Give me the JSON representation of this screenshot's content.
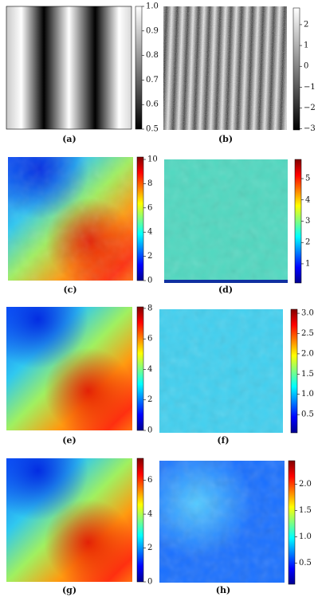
{
  "panels": [
    {
      "caption": "(a)",
      "colormap": "gray",
      "lim": [
        0.5,
        1.0
      ],
      "ticks": [
        0.5,
        0.6,
        0.7,
        0.8,
        0.9,
        {
          "value": 1.0,
          "label": "1.0"
        }
      ]
    },
    {
      "caption": "(b)",
      "colormap": "gray",
      "lim": [
        -3.05,
        2.8
      ],
      "ticks": [
        {
          "value": -3,
          "label": "−3"
        },
        {
          "value": -2,
          "label": "−2"
        },
        {
          "value": -1,
          "label": "−1"
        },
        0,
        1,
        2
      ]
    },
    {
      "caption": "(c)",
      "colormap": "jet",
      "lim": [
        0,
        10.2
      ],
      "ticks": [
        0,
        2,
        4,
        6,
        8,
        10
      ]
    },
    {
      "caption": "(d)",
      "colormap": "jet",
      "lim": [
        0.1,
        5.9
      ],
      "ticks": [
        1,
        2,
        3,
        4,
        5
      ]
    },
    {
      "caption": "(e)",
      "colormap": "jet",
      "lim": [
        0,
        8.1
      ],
      "ticks": [
        0,
        2,
        4,
        6,
        8
      ]
    },
    {
      "caption": "(f)",
      "colormap": "jet",
      "lim": [
        0.05,
        3.1
      ],
      "ticks": [
        0.5,
        {
          "value": 1.0,
          "label": "1.0"
        },
        1.5,
        {
          "value": 2.0,
          "label": "2.0"
        },
        2.5,
        {
          "value": 3.0,
          "label": "3.0"
        }
      ]
    },
    {
      "caption": "(g)",
      "colormap": "jet",
      "lim": [
        0,
        7.3
      ],
      "ticks": [
        0,
        2,
        4,
        6
      ]
    },
    {
      "caption": "(h)",
      "colormap": "jet",
      "lim": [
        0.1,
        2.45
      ],
      "ticks": [
        0.5,
        {
          "value": 1.0,
          "label": "1.0"
        },
        1.5,
        {
          "value": 2.0,
          "label": "2.0"
        }
      ]
    }
  ]
}
